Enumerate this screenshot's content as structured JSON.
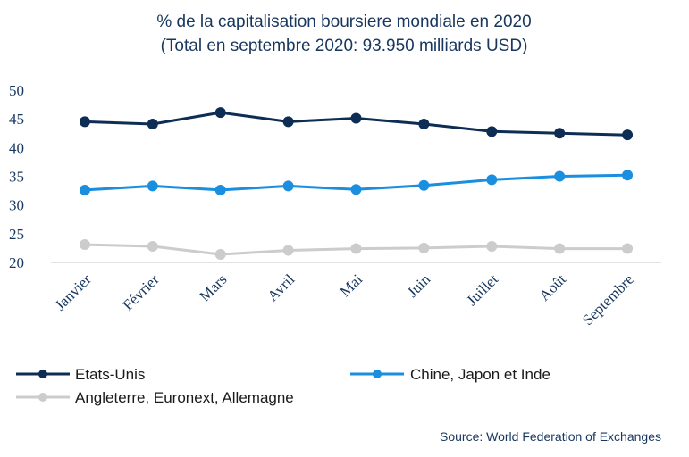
{
  "chart_data": {
    "type": "line",
    "title": "% de la capitalisation boursiere mondiale en 2020",
    "subtitle": "(Total en septembre 2020: 93.950 milliards USD)",
    "categories": [
      "Janvier",
      "Février",
      "Mars",
      "Avril",
      "Mai",
      "Juin",
      "Juillet",
      "Août",
      "Septembre"
    ],
    "ylim": [
      20,
      50
    ],
    "yticks": [
      20,
      25,
      30,
      35,
      40,
      45,
      50
    ],
    "grid": false,
    "legend_position": "bottom-left",
    "series": [
      {
        "name": "Etats-Unis",
        "color": "#0d2d55",
        "values": [
          44.5,
          44.1,
          46.1,
          44.5,
          45.1,
          44.1,
          42.8,
          42.5,
          42.2
        ]
      },
      {
        "name": "Chine, Japon et Inde",
        "color": "#1a8fe0",
        "values": [
          32.6,
          33.3,
          32.6,
          33.3,
          32.7,
          33.4,
          34.4,
          35.0,
          35.2
        ]
      },
      {
        "name": "Angleterre, Euronext, Allemagne",
        "color": "#cccccc",
        "values": [
          23.1,
          22.8,
          21.4,
          22.1,
          22.4,
          22.5,
          22.8,
          22.4,
          22.4
        ]
      }
    ],
    "source": "Source: World Federation of Exchanges"
  }
}
